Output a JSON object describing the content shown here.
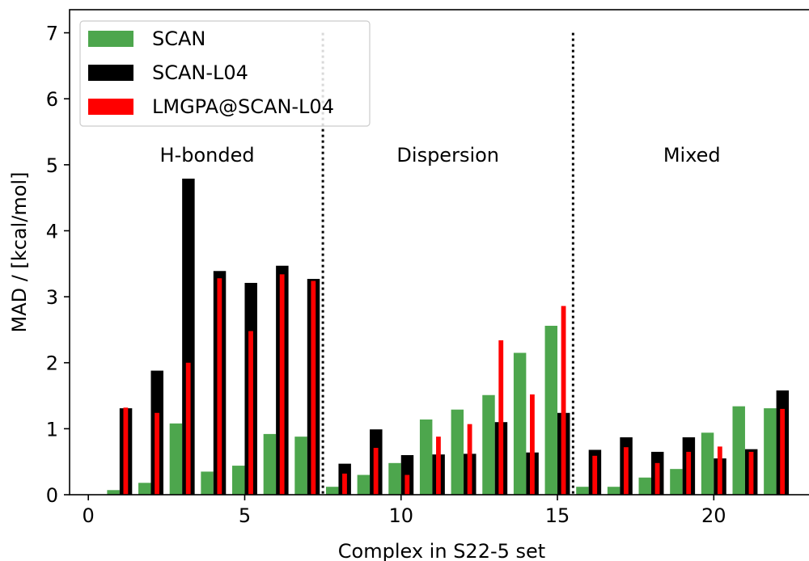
{
  "chart_data": {
    "type": "bar",
    "xlabel": "Complex in S22-5 set",
    "ylabel": "MAD / [kcal/mol]",
    "xlim": [
      -0.6,
      23.2
    ],
    "ylim": [
      0,
      7.35
    ],
    "xticks": [
      0,
      5,
      10,
      15,
      20
    ],
    "yticks": [
      0,
      1,
      2,
      3,
      4,
      5,
      6,
      7
    ],
    "legend_position": "top-left",
    "x": [
      1,
      2,
      3,
      4,
      5,
      6,
      7,
      8,
      9,
      10,
      11,
      12,
      13,
      14,
      15,
      16,
      17,
      18,
      19,
      20,
      21,
      22
    ],
    "series": [
      {
        "name": "SCAN",
        "color": "#4da64d",
        "values": [
          0.07,
          0.18,
          1.08,
          0.35,
          0.44,
          0.92,
          0.88,
          0.12,
          0.3,
          0.48,
          1.14,
          1.29,
          1.51,
          2.15,
          2.56,
          0.12,
          0.12,
          0.26,
          0.39,
          0.94,
          1.34,
          1.31
        ]
      },
      {
        "name": "SCAN-L04",
        "color": "#000000",
        "values": [
          1.31,
          1.88,
          4.79,
          3.39,
          3.21,
          3.47,
          3.27,
          0.47,
          0.99,
          0.6,
          0.61,
          0.62,
          1.1,
          0.64,
          1.24,
          0.68,
          0.87,
          0.65,
          0.87,
          0.55,
          0.69,
          1.58
        ]
      },
      {
        "name": "LMGPA@SCAN-L04",
        "color": "#ff0000",
        "values": [
          1.32,
          1.24,
          2.0,
          3.28,
          2.48,
          3.34,
          3.24,
          0.32,
          0.71,
          0.3,
          0.88,
          1.07,
          2.34,
          1.52,
          2.86,
          0.59,
          0.72,
          0.48,
          0.65,
          0.73,
          0.65,
          1.3
        ]
      }
    ],
    "separators": [
      {
        "x": 7.5,
        "ymax": 7.0
      },
      {
        "x": 15.5,
        "ymax": 7.0
      }
    ],
    "regions": [
      {
        "label": "H-bonded",
        "x": 3.8,
        "y": 5.05
      },
      {
        "label": "Dispersion",
        "x": 11.5,
        "y": 5.05
      },
      {
        "label": "Mixed",
        "x": 19.3,
        "y": 5.05
      }
    ]
  }
}
